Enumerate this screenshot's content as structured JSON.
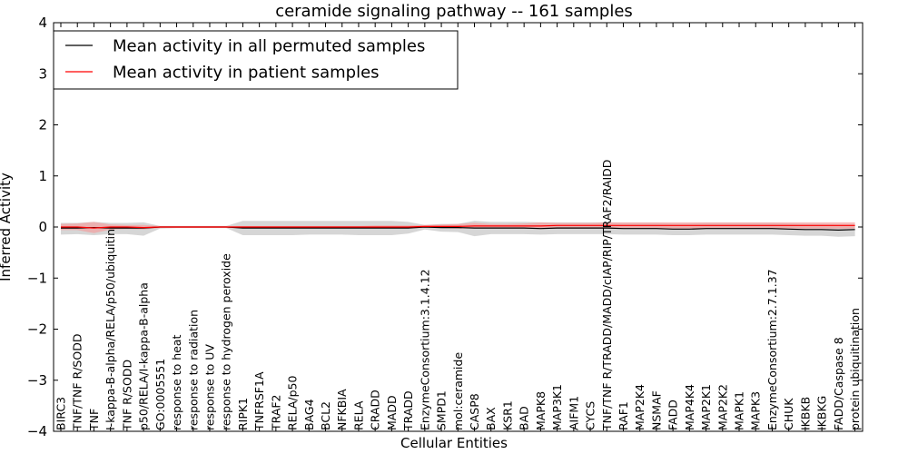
{
  "chart_data": {
    "type": "line",
    "title": "ceramide signaling pathway -- 161 samples",
    "xlabel": "Cellular Entities",
    "ylabel": "Inferred Activity",
    "ylim": [
      -4,
      4
    ],
    "yticks": [
      -4,
      -3,
      -2,
      -1,
      0,
      1,
      2,
      3,
      4
    ],
    "ytick_labels": [
      "−4",
      "−3",
      "−2",
      "−1",
      "0",
      "1",
      "2",
      "3",
      "4"
    ],
    "legend_position": "upper-left",
    "categories": [
      "BIRC3",
      "TNF/TNF R/SODD",
      "TNF",
      "I-kappa-B-alpha/RELA/p50/ubiquitin",
      "TNF R/SODD",
      "p50/RELA/I-kappa-B-alpha",
      "GO:0005551",
      "response to heat",
      "response to radiation",
      "response to UV",
      "response to hydrogen peroxide",
      "RIPK1",
      "TNFRSF1A",
      "TRAF2",
      "RELA/p50",
      "BAG4",
      "BCL2",
      "NFKBIA",
      "RELA",
      "CRADD",
      "MADD",
      "TRADD",
      "EnzymeConsortium:3.1.4.12",
      "SMPD1",
      "mol:ceramide",
      "CASP8",
      "BAX",
      "KSR1",
      "BAD",
      "MAPK8",
      "MAP3K1",
      "AIFM1",
      "CYCS",
      "TNF/TNF R/TRADD/MADD/cIAP/RIP/TRAF2/RAIDD",
      "RAF1",
      "MAP2K4",
      "NSMAF",
      "FADD",
      "MAP4K4",
      "MAP2K1",
      "MAP2K2",
      "MAPK1",
      "MAPK3",
      "EnzymeConsortium:2.7.1.37",
      "CHUK",
      "IKBKB",
      "IKBKG",
      "FADD/Caspase 8",
      "protein ubiquitination"
    ],
    "series": [
      {
        "name": "Mean activity in all permuted samples",
        "color": "#000000",
        "band_color": "#c8c8c8",
        "values": [
          -0.02,
          -0.02,
          -0.01,
          -0.02,
          -0.02,
          -0.02,
          0.0,
          0.0,
          0.0,
          0.0,
          0.0,
          -0.02,
          -0.02,
          -0.02,
          -0.02,
          -0.02,
          -0.02,
          -0.02,
          -0.02,
          -0.02,
          -0.02,
          -0.02,
          0.0,
          -0.01,
          -0.01,
          -0.02,
          -0.02,
          -0.02,
          -0.02,
          -0.03,
          -0.02,
          -0.02,
          -0.02,
          -0.02,
          -0.03,
          -0.03,
          -0.03,
          -0.04,
          -0.04,
          -0.03,
          -0.03,
          -0.03,
          -0.03,
          -0.03,
          -0.04,
          -0.05,
          -0.05,
          -0.06,
          -0.05
        ],
        "lower": [
          -0.15,
          -0.14,
          -0.16,
          -0.14,
          -0.14,
          -0.17,
          -0.03,
          -0.02,
          -0.02,
          -0.02,
          -0.02,
          -0.16,
          -0.16,
          -0.16,
          -0.16,
          -0.15,
          -0.15,
          -0.15,
          -0.16,
          -0.16,
          -0.16,
          -0.13,
          -0.05,
          -0.09,
          -0.1,
          -0.18,
          -0.14,
          -0.14,
          -0.14,
          -0.15,
          -0.14,
          -0.14,
          -0.14,
          -0.14,
          -0.15,
          -0.15,
          -0.15,
          -0.16,
          -0.16,
          -0.15,
          -0.15,
          -0.15,
          -0.15,
          -0.15,
          -0.16,
          -0.17,
          -0.17,
          -0.19,
          -0.18
        ],
        "upper": [
          0.08,
          0.08,
          0.1,
          0.08,
          0.08,
          0.09,
          0.02,
          0.02,
          0.02,
          0.02,
          0.02,
          0.12,
          0.12,
          0.12,
          0.12,
          0.12,
          0.12,
          0.12,
          0.12,
          0.12,
          0.12,
          0.1,
          0.04,
          0.06,
          0.06,
          0.12,
          0.1,
          0.1,
          0.1,
          0.09,
          0.09,
          0.09,
          0.09,
          0.09,
          0.08,
          0.08,
          0.08,
          0.07,
          0.07,
          0.08,
          0.08,
          0.08,
          0.08,
          0.08,
          0.07,
          0.06,
          0.06,
          0.05,
          0.05
        ]
      },
      {
        "name": "Mean activity in patient samples",
        "color": "#ff0000",
        "band_color": "#f2a0a0",
        "values": [
          0.0,
          0.0,
          -0.02,
          0.0,
          0.0,
          -0.01,
          0.0,
          0.0,
          0.0,
          0.0,
          0.0,
          0.0,
          0.0,
          0.0,
          0.0,
          0.0,
          0.0,
          0.0,
          0.0,
          0.0,
          0.0,
          0.0,
          0.01,
          0.01,
          0.01,
          0.02,
          0.02,
          0.02,
          0.02,
          0.02,
          0.03,
          0.03,
          0.03,
          0.03,
          0.03,
          0.03,
          0.03,
          0.03,
          0.03,
          0.03,
          0.03,
          0.03,
          0.03,
          0.03,
          0.03,
          0.03,
          0.03,
          0.03,
          0.03
        ],
        "lower": [
          -0.06,
          -0.06,
          -0.12,
          -0.05,
          -0.04,
          -0.05,
          -0.02,
          -0.02,
          -0.02,
          -0.02,
          -0.02,
          -0.02,
          -0.02,
          -0.02,
          -0.02,
          -0.02,
          -0.02,
          -0.02,
          -0.02,
          -0.02,
          -0.02,
          -0.02,
          -0.02,
          -0.02,
          -0.03,
          -0.03,
          -0.03,
          -0.03,
          -0.03,
          -0.04,
          -0.03,
          -0.03,
          -0.03,
          -0.03,
          -0.03,
          -0.03,
          -0.03,
          -0.03,
          -0.03,
          -0.03,
          -0.03,
          -0.03,
          -0.03,
          -0.03,
          -0.03,
          -0.03,
          -0.03,
          -0.03,
          -0.03
        ],
        "upper": [
          0.06,
          0.07,
          0.1,
          0.05,
          0.04,
          0.04,
          0.02,
          0.02,
          0.02,
          0.02,
          0.02,
          0.02,
          0.02,
          0.02,
          0.02,
          0.02,
          0.02,
          0.02,
          0.02,
          0.03,
          0.03,
          0.03,
          0.04,
          0.05,
          0.06,
          0.08,
          0.06,
          0.06,
          0.07,
          0.09,
          0.08,
          0.08,
          0.08,
          0.09,
          0.09,
          0.09,
          0.09,
          0.09,
          0.09,
          0.09,
          0.09,
          0.09,
          0.09,
          0.09,
          0.09,
          0.09,
          0.09,
          0.09,
          0.09
        ]
      }
    ]
  }
}
